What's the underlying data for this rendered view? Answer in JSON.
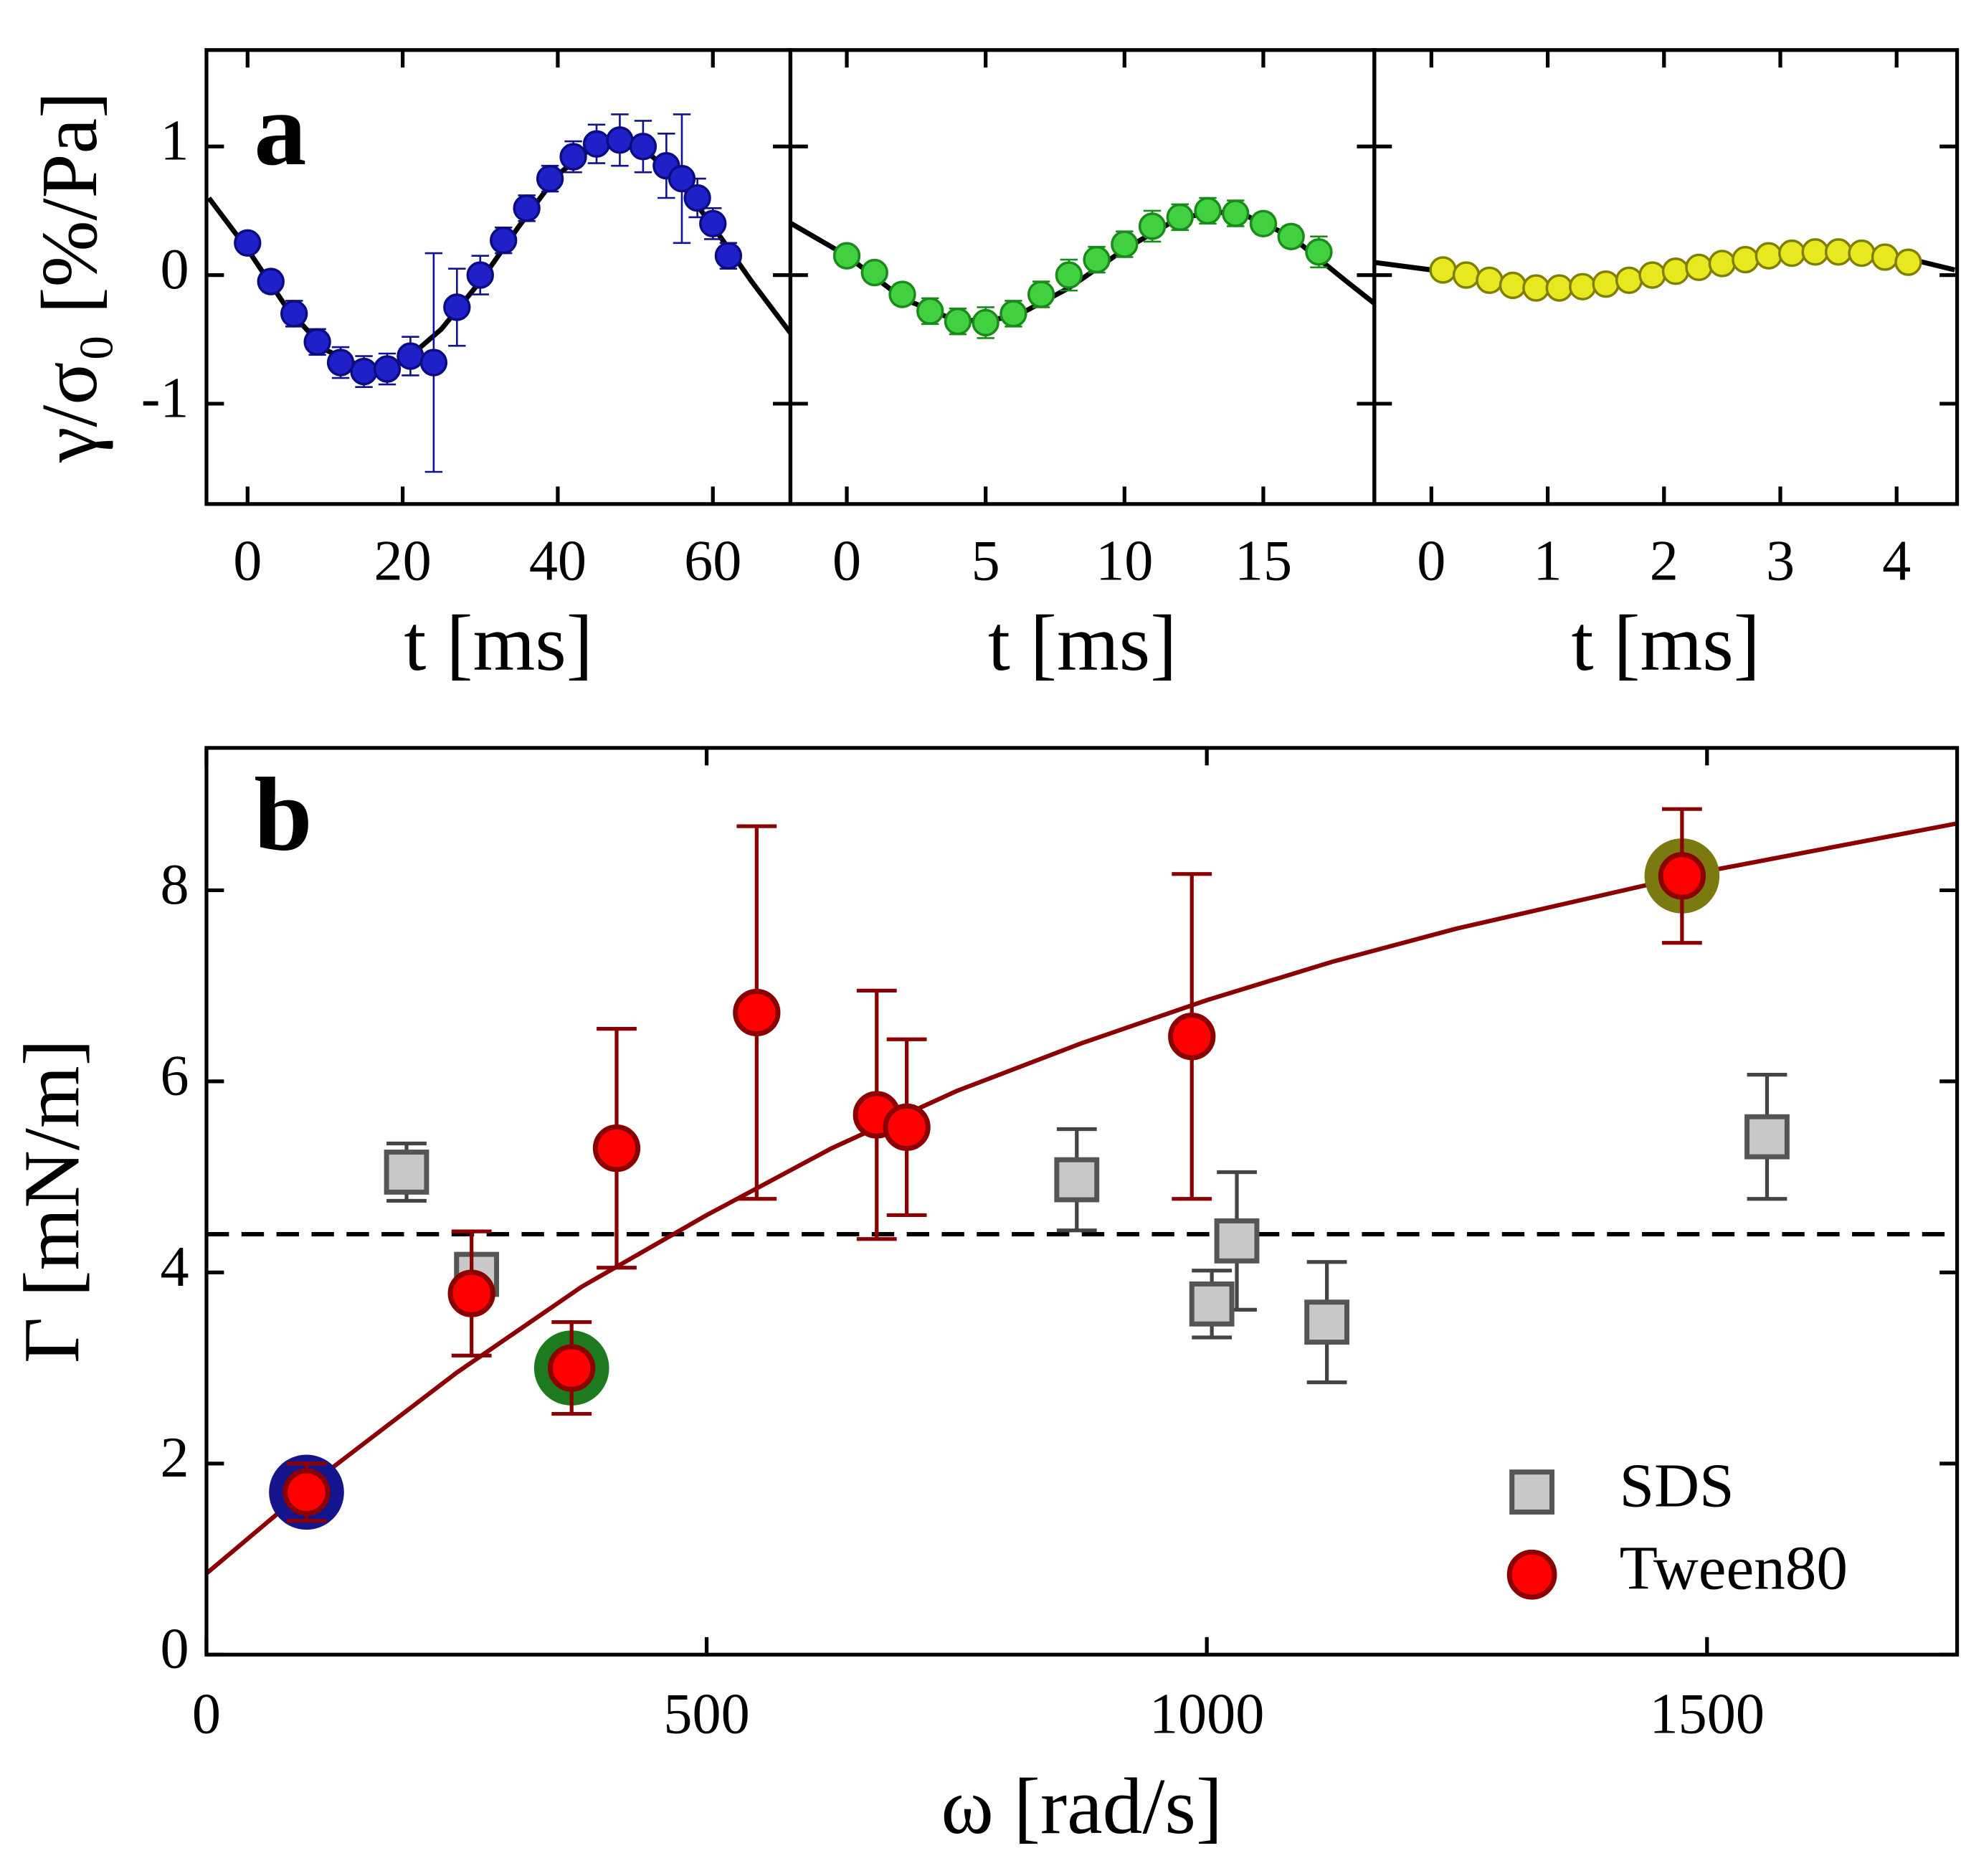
{
  "chart_data": [
    {
      "type": "scatter",
      "label": "a",
      "y_label": "γ/σ₀ [%/Pa]",
      "x_label": "t [ms]",
      "xlim": [
        -5.3,
        70
      ],
      "xticks": [
        0,
        20,
        40,
        60
      ],
      "ylim": [
        -1.78,
        1.75
      ],
      "yticks": [
        -1,
        0,
        1
      ],
      "series": [
        {
          "color": "#2020c8",
          "edge": "#0c0c80",
          "error_color": "#12128c",
          "x": [
            0,
            3,
            6,
            9,
            12,
            15,
            18,
            21,
            24,
            27,
            30,
            33,
            36,
            39,
            42,
            45,
            48,
            51,
            54,
            56,
            58,
            60,
            62
          ],
          "values": [
            0.25,
            -0.05,
            -0.3,
            -0.52,
            -0.68,
            -0.75,
            -0.73,
            -0.63,
            -0.68,
            -0.25,
            0.0,
            0.27,
            0.52,
            0.75,
            0.92,
            1.02,
            1.05,
            1.0,
            0.85,
            0.75,
            0.6,
            0.4,
            0.15
          ],
          "errors": [
            0.05,
            0.08,
            0.1,
            0.1,
            0.12,
            0.12,
            0.12,
            0.15,
            0.85,
            0.3,
            0.15,
            0.1,
            0.1,
            0.1,
            0.12,
            0.15,
            0.2,
            0.2,
            0.25,
            0.5,
            0.15,
            0.12,
            0.1
          ]
        }
      ],
      "fit": {
        "color": "#000000",
        "x": [
          -5,
          0,
          5,
          10,
          15,
          20,
          25,
          30,
          35,
          40,
          45,
          50,
          55,
          60,
          65,
          70
        ],
        "values": [
          0.6,
          0.2,
          -0.25,
          -0.58,
          -0.72,
          -0.68,
          -0.42,
          -0.05,
          0.38,
          0.78,
          1.02,
          1.03,
          0.78,
          0.38,
          -0.05,
          -0.45
        ]
      }
    },
    {
      "type": "scatter",
      "x_label": "t [ms]",
      "xlim": [
        -2.03,
        19.0
      ],
      "xticks": [
        0,
        5,
        10,
        15
      ],
      "series": [
        {
          "color": "#40d040",
          "edge": "#1a8a1a",
          "error_color": "#1a8a1a",
          "x": [
            0,
            1,
            2,
            3,
            4,
            5,
            6,
            7,
            8,
            9,
            10,
            11,
            12,
            13,
            14,
            15,
            16,
            17
          ],
          "values": [
            0.15,
            0.02,
            -0.15,
            -0.28,
            -0.36,
            -0.37,
            -0.3,
            -0.15,
            0.0,
            0.12,
            0.24,
            0.38,
            0.45,
            0.5,
            0.48,
            0.4,
            0.3,
            0.18
          ],
          "errors": [
            0.05,
            0.06,
            0.08,
            0.1,
            0.1,
            0.12,
            0.1,
            0.1,
            0.12,
            0.1,
            0.1,
            0.12,
            0.1,
            0.1,
            0.1,
            0.08,
            0.08,
            0.12
          ]
        }
      ],
      "fit": {
        "color": "#000000",
        "x": [
          -2,
          0,
          2,
          4,
          6,
          8,
          10,
          12,
          14,
          16,
          18,
          19
        ],
        "values": [
          0.4,
          0.15,
          -0.18,
          -0.36,
          -0.33,
          -0.1,
          0.2,
          0.45,
          0.5,
          0.3,
          -0.05,
          -0.22
        ]
      }
    },
    {
      "type": "scatter",
      "x_label": "t [ms]",
      "xlim": [
        -0.49,
        4.52
      ],
      "xticks": [
        0,
        1,
        2,
        3,
        4
      ],
      "series": [
        {
          "color": "#e8e820",
          "edge": "#808000",
          "error_color": "#808000",
          "x": [
            0.1,
            0.3,
            0.5,
            0.7,
            0.9,
            1.1,
            1.3,
            1.5,
            1.7,
            1.9,
            2.1,
            2.3,
            2.5,
            2.7,
            2.9,
            3.1,
            3.3,
            3.5,
            3.7,
            3.9,
            4.1
          ],
          "values": [
            0.04,
            0.0,
            -0.04,
            -0.08,
            -0.1,
            -0.1,
            -0.09,
            -0.07,
            -0.04,
            0.0,
            0.03,
            0.06,
            0.09,
            0.12,
            0.15,
            0.17,
            0.18,
            0.18,
            0.17,
            0.14,
            0.1
          ],
          "errors": [
            0.04,
            0.04,
            0.04,
            0.04,
            0.04,
            0.04,
            0.04,
            0.04,
            0.04,
            0.04,
            0.04,
            0.04,
            0.04,
            0.04,
            0.04,
            0.04,
            0.04,
            0.04,
            0.04,
            0.04,
            0.04
          ]
        }
      ],
      "fit": {
        "color": "#000000",
        "x": [
          -0.5,
          0,
          0.5,
          1,
          1.5,
          2,
          2.5,
          3,
          3.5,
          4,
          4.5
        ],
        "values": [
          0.1,
          0.04,
          -0.05,
          -0.1,
          -0.08,
          -0.02,
          0.06,
          0.14,
          0.18,
          0.15,
          0.04
        ]
      }
    },
    {
      "type": "scatter",
      "label": "b",
      "x_label": "ω [rad/s]",
      "y_label": "Γ [mN/m]",
      "xlim": [
        0,
        1750
      ],
      "xticks": [
        0,
        500,
        1000,
        1500
      ],
      "ylim": [
        0,
        9.49
      ],
      "yticks": [
        0,
        2,
        4,
        6,
        8
      ],
      "legend": "lower right",
      "reference_line": 4.4,
      "series": [
        {
          "name": "SDS",
          "marker": "square",
          "color": "#c8c8c8",
          "edge": "#555555",
          "error_color": "#444444",
          "x": [
            200,
            270,
            870,
            1005,
            1030,
            1120,
            1560
          ],
          "values": [
            5.05,
            3.98,
            4.97,
            3.67,
            4.33,
            3.48,
            5.42
          ],
          "errors": [
            0.3,
            0.15,
            0.53,
            0.35,
            0.72,
            0.63,
            0.65
          ]
        },
        {
          "name": "Tween80",
          "marker": "circle",
          "color": "#ff0000",
          "edge": "#8b0000",
          "error_color": "#8b0000",
          "x": [
            100,
            265,
            365,
            410,
            550,
            670,
            700,
            985,
            1475
          ],
          "values": [
            1.7,
            3.78,
            3.0,
            5.3,
            6.72,
            5.65,
            5.52,
            6.47,
            8.15
          ],
          "errors": [
            0.3,
            0.65,
            0.48,
            1.25,
            1.95,
            1.3,
            0.92,
            1.7,
            0.7
          ],
          "ring_colors": [
            "#14148c",
            null,
            "#1e7a1e",
            null,
            null,
            null,
            null,
            null,
            "#7a7a10"
          ]
        }
      ],
      "fit": {
        "color": "#8b0000",
        "x": [
          0,
          125,
          250,
          375,
          500,
          625,
          750,
          875,
          1000,
          1125,
          1250,
          1375,
          1500,
          1625,
          1750
        ],
        "values": [
          0.85,
          1.95,
          2.95,
          3.85,
          4.6,
          5.3,
          5.9,
          6.4,
          6.85,
          7.25,
          7.6,
          7.9,
          8.2,
          8.45,
          8.7
        ]
      }
    }
  ]
}
